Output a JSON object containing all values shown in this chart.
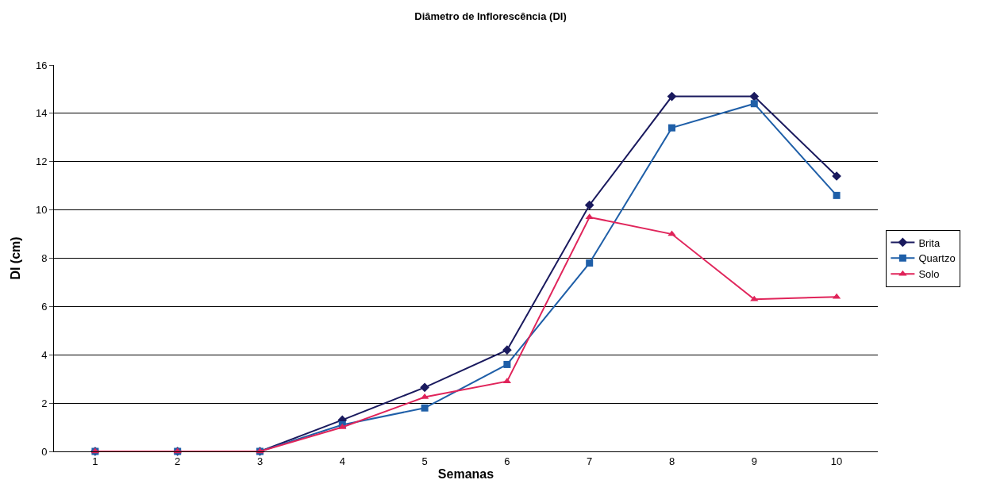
{
  "chart_data": {
    "type": "line",
    "title": "Diâmetro de Inflorescência (DI)",
    "xlabel": "Semanas",
    "ylabel": "DI (cm)",
    "categories": [
      "1",
      "2",
      "3",
      "4",
      "5",
      "6",
      "7",
      "8",
      "9",
      "10"
    ],
    "series": [
      {
        "name": "Brita",
        "color": "#1a1a5e",
        "marker": "diamond",
        "values": [
          0,
          0,
          0,
          1.3,
          2.65,
          4.2,
          10.2,
          14.7,
          14.7,
          11.4
        ]
      },
      {
        "name": "Quartzo",
        "color": "#1f5fa8",
        "marker": "square",
        "values": [
          0,
          0,
          0,
          1.1,
          1.8,
          3.6,
          7.8,
          13.4,
          14.4,
          10.6
        ]
      },
      {
        "name": "Solo",
        "color": "#e0245a",
        "marker": "triangle",
        "values": [
          0,
          0,
          0,
          1.0,
          2.25,
          2.9,
          9.7,
          9.0,
          6.3,
          6.4
        ]
      }
    ],
    "ylim": [
      0,
      16
    ],
    "yticks": [
      0,
      2,
      4,
      6,
      8,
      10,
      12,
      14,
      16
    ],
    "grid": "y",
    "legend": "right"
  }
}
